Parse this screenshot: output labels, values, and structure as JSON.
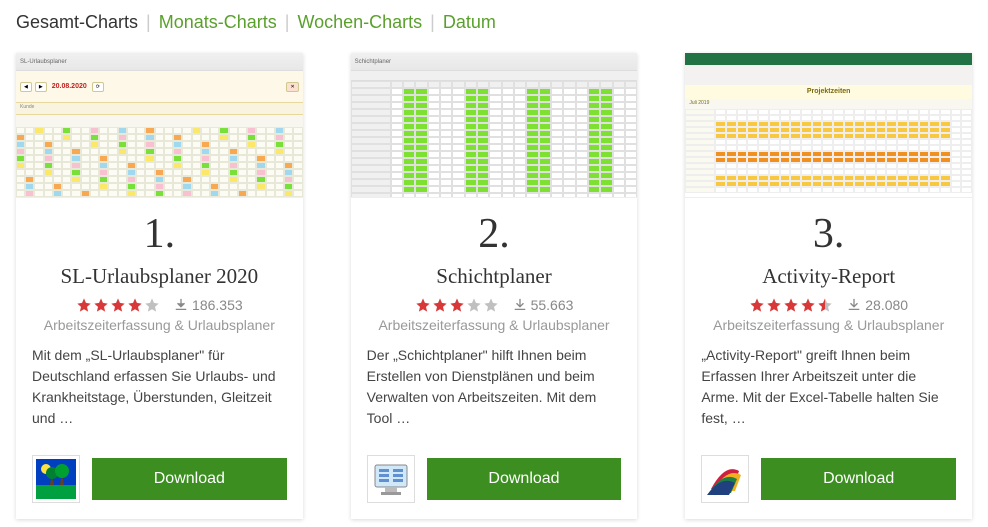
{
  "tabs": {
    "items": [
      {
        "label": "Gesamt-Charts",
        "active": true
      },
      {
        "label": "Monats-Charts",
        "active": false
      },
      {
        "label": "Wochen-Charts",
        "active": false
      },
      {
        "label": "Datum",
        "active": false
      }
    ]
  },
  "colors": {
    "brand_green": "#3b8e1f",
    "tab_green": "#5aa02c",
    "star_filled": "#d93838",
    "star_empty": "#c0c0c0",
    "text_dark": "#333333",
    "text_muted": "#999999",
    "text_body": "#444444",
    "dl_meta": "#888888"
  },
  "cards": [
    {
      "rank": "1.",
      "title": "SL-Urlaubsplaner 2020",
      "rating": 4,
      "downloads": "186.353",
      "category": "Arbeitszeiterfassung & Urlaubsplaner",
      "desc": "Mit dem „SL-Urlaubsplaner\" für Deutschland erfassen Sie Urlaubs- und Krankheitstage, Überstunden, Gleitzeit und …",
      "download_label": "Download",
      "thumb_date": "20.08.2020"
    },
    {
      "rank": "2.",
      "title": "Schichtplaner",
      "rating": 3,
      "downloads": "55.663",
      "category": "Arbeitszeiterfassung & Urlaubsplaner",
      "desc": "Der „Schichtplaner\" hilft Ihnen beim Erstellen von Dienstplänen und beim Verwalten von Arbeitszeiten. Mit dem Tool …",
      "download_label": "Download"
    },
    {
      "rank": "3.",
      "title": "Activity-Report",
      "rating": 4.5,
      "downloads": "28.080",
      "category": "Arbeitszeiterfassung & Urlaubsplaner",
      "desc": "„Activity-Report\" greift Ihnen beim Erfassen Ihrer Arbeitszeit unter die Arme. Mit der Excel-Tabelle halten Sie fest, …",
      "download_label": "Download",
      "thumb_month": "Juli 2019"
    }
  ]
}
